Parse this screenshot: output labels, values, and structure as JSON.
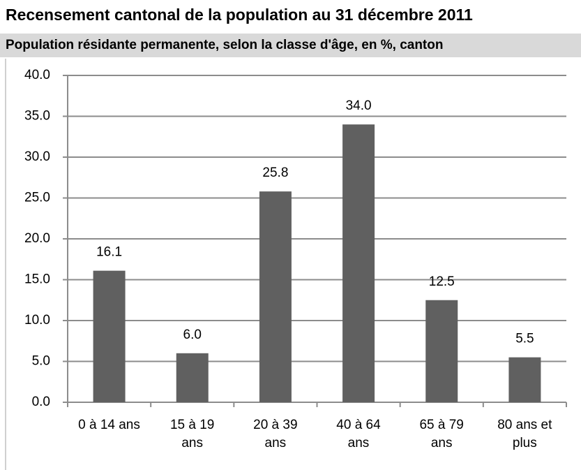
{
  "chart_data": {
    "type": "bar",
    "title": "Recensement cantonal de la population au 31 décembre 2011",
    "subtitle": "Population résidante permanente, selon la classe d'âge, en %, canton",
    "categories": [
      "0 à 14 ans",
      "15 à 19\nans",
      "20 à 39\nans",
      "40 à 64\nans",
      "65 à 79\nans",
      "80 ans et\nplus"
    ],
    "values": [
      16.1,
      6,
      25.8,
      34,
      12.5,
      5.5
    ],
    "value_labels": [
      "16.1",
      "6.0",
      "25.8",
      "34.0",
      "12.5",
      "5.5"
    ],
    "color": "#606060",
    "ylim": [
      0,
      40
    ],
    "yticks": [
      {
        "value": 0,
        "label": "0.0"
      },
      {
        "value": 5,
        "label": "5.0"
      },
      {
        "value": 10,
        "label": "10.0"
      },
      {
        "value": 15,
        "label": "15.0"
      },
      {
        "value": 20,
        "label": "20.0"
      },
      {
        "value": 25,
        "label": "25.0"
      },
      {
        "value": 30,
        "label": "30.0"
      },
      {
        "value": 35,
        "label": "35.0"
      },
      {
        "value": 40,
        "label": "40.0"
      }
    ],
    "grid": true
  }
}
